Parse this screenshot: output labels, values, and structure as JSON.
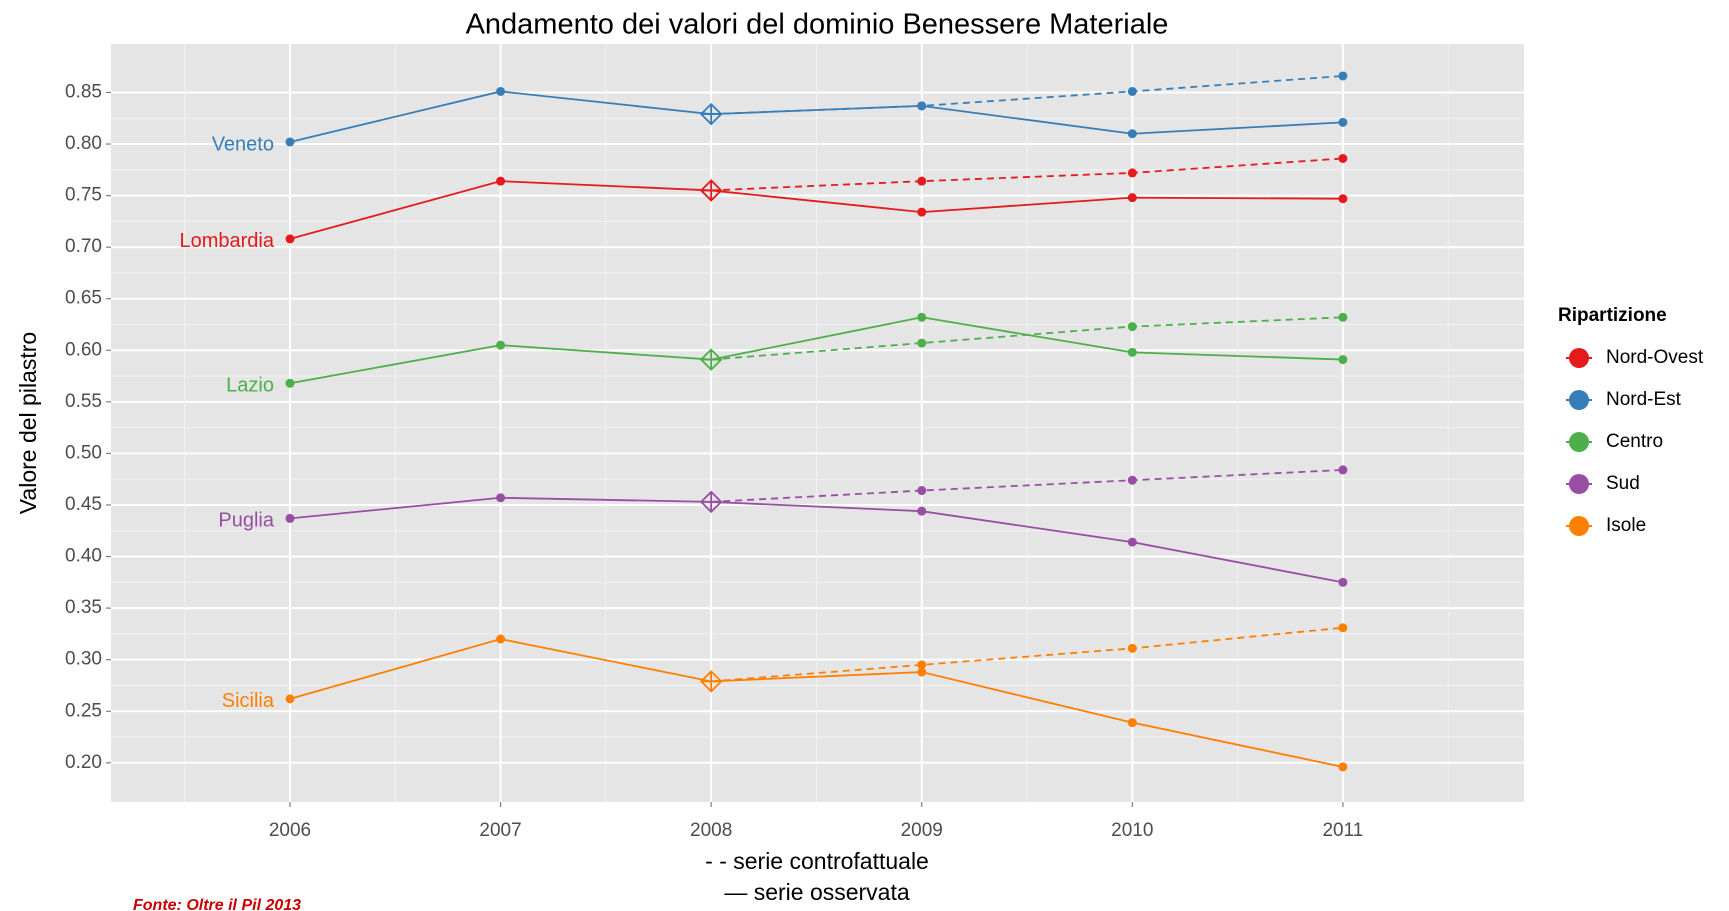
{
  "chart_data": {
    "type": "line",
    "title": "Andamento dei valori del dominio Benessere Materiale",
    "ylabel": "Valore del pilastro",
    "xlabel_lines": [
      "- - serie controfattuale",
      "— serie osservata"
    ],
    "source": "Fonte: Oltre il Pil 2013",
    "legend_title": "Ripartizione",
    "legend_position": "right",
    "grid": true,
    "x": [
      2006,
      2007,
      2008,
      2009,
      2010,
      2011
    ],
    "xlim": [
      2005.15,
      2011.86
    ],
    "xticks": [
      2006,
      2007,
      2008,
      2009,
      2010,
      2011
    ],
    "ylim": [
      0.162,
      0.897
    ],
    "yticks": [
      {
        "value": 0.2,
        "label": "0.20"
      },
      0.25,
      {
        "value": 0.3,
        "label": "0.30"
      },
      0.35,
      {
        "value": 0.4,
        "label": "0.40"
      },
      0.45,
      {
        "value": 0.5,
        "label": "0.50"
      },
      0.55,
      {
        "value": 0.6,
        "label": "0.60"
      },
      0.65,
      {
        "value": 0.7,
        "label": "0.70"
      },
      0.75,
      {
        "value": 0.8,
        "label": "0.80"
      },
      0.85
    ],
    "series": [
      {
        "name": "Nord-Ovest",
        "region": "Lombardia",
        "color": "#e41a1c",
        "values": [
          0.708,
          0.764,
          0.755,
          0.734,
          0.748,
          0.747
        ],
        "counterfactual": [
          null,
          null,
          0.755,
          0.764,
          0.772,
          0.786
        ]
      },
      {
        "name": "Nord-Est",
        "region": "Veneto",
        "color": "#377eb8",
        "values": [
          0.802,
          0.851,
          0.829,
          0.837,
          0.81,
          0.821
        ],
        "counterfactual": [
          null,
          null,
          0.829,
          0.837,
          0.851,
          0.866
        ]
      },
      {
        "name": "Centro",
        "region": "Lazio",
        "color": "#4daf4a",
        "values": [
          0.568,
          0.605,
          0.591,
          0.632,
          0.598,
          0.591
        ],
        "counterfactual": [
          null,
          null,
          0.591,
          0.607,
          0.623,
          0.632
        ]
      },
      {
        "name": "Sud",
        "region": "Puglia",
        "color": "#984ea3",
        "values": [
          0.437,
          0.457,
          0.453,
          0.444,
          0.414,
          0.375
        ],
        "counterfactual": [
          null,
          null,
          0.453,
          0.464,
          0.474,
          0.484
        ]
      },
      {
        "name": "Isole",
        "region": "Sicilia",
        "color": "#ff7f00",
        "values": [
          0.262,
          0.32,
          0.279,
          0.288,
          0.239,
          0.196
        ],
        "counterfactual": [
          null,
          null,
          0.279,
          0.295,
          0.311,
          0.331
        ]
      }
    ]
  }
}
